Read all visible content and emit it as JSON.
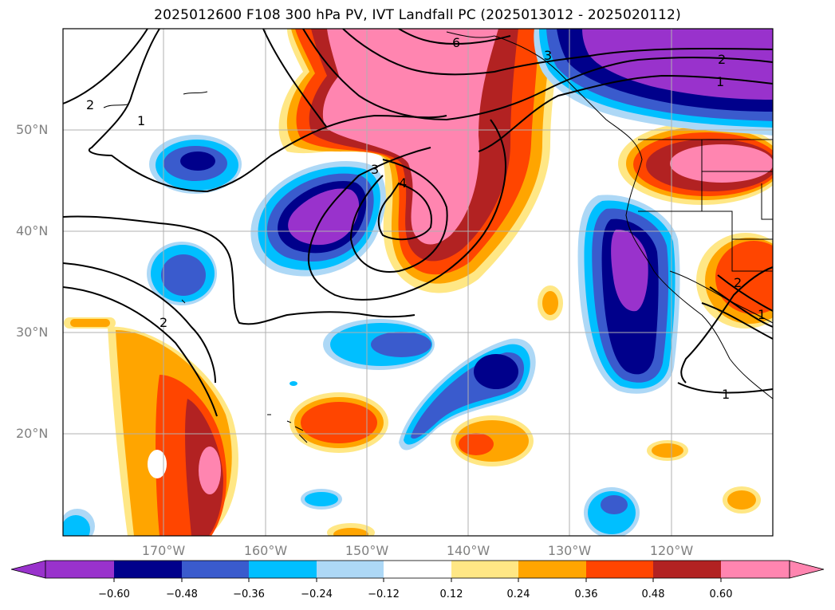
{
  "title": "2025012600 F108 300 hPa PV, IVT Landfall PC (2025013012 - 2025020112)",
  "map": {
    "lat_ticks": [
      "50°N",
      "40°N",
      "30°N",
      "20°N"
    ],
    "lon_ticks": [
      "170°W",
      "160°W",
      "150°W",
      "140°W",
      "130°W",
      "120°W"
    ],
    "contour_labels": [
      "6",
      "3",
      "2",
      "1",
      "2",
      "1",
      "3",
      "4",
      "2",
      "1",
      "2",
      "1"
    ]
  },
  "colorbar": {
    "ticks": [
      "−0.60",
      "−0.48",
      "−0.36",
      "−0.24",
      "−0.12",
      "0.12",
      "0.24",
      "0.36",
      "0.48",
      "0.60"
    ],
    "colors": [
      "#9932cc",
      "#00008b",
      "#3a5bcd",
      "#00bfff",
      "#add8f6",
      "#ffffff",
      "#ffe785",
      "#ffa500",
      "#ff4500",
      "#b22222",
      "#ff85b0"
    ]
  }
}
